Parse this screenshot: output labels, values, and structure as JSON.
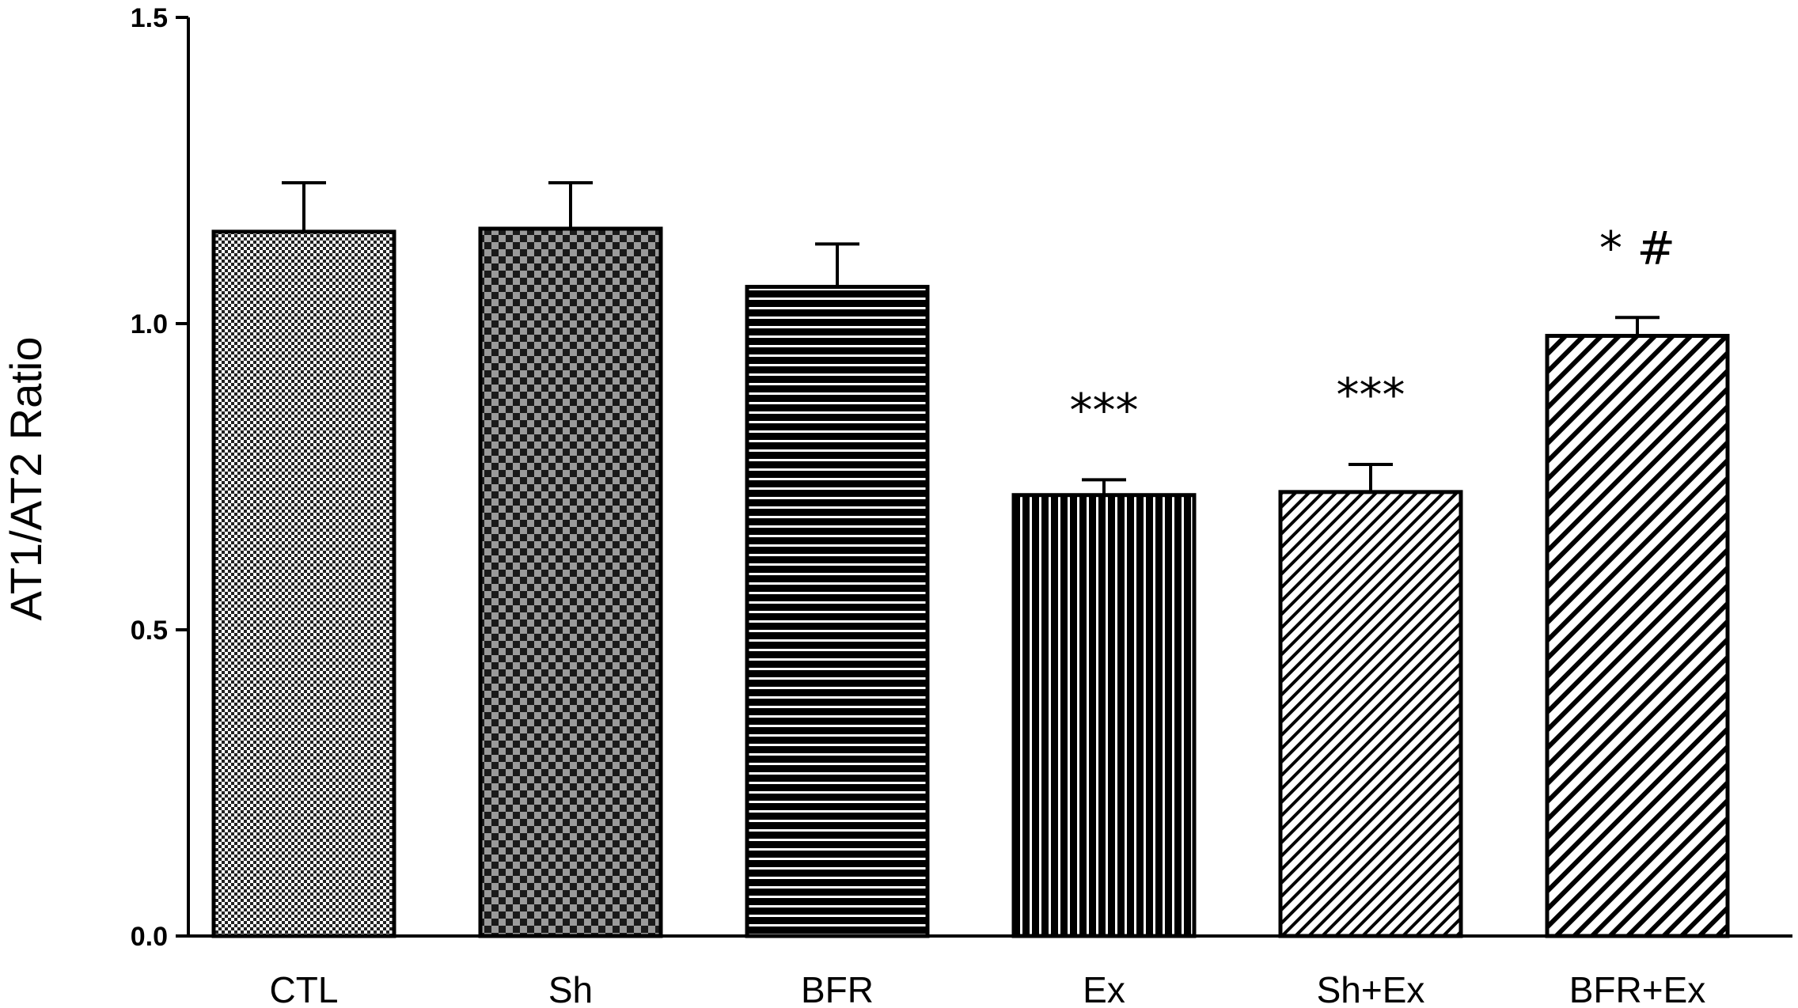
{
  "chart_data": {
    "type": "bar",
    "title": "",
    "xlabel": "",
    "ylabel": "AT1/AT2 Ratio",
    "ylim": [
      0.0,
      1.5
    ],
    "yticks": [
      "0.0",
      "0.5",
      "1.0",
      "1.5"
    ],
    "grid": false,
    "categories": [
      "CTL",
      "Sh",
      "BFR",
      "Ex",
      "Sh+Ex",
      "BFR+Ex"
    ],
    "values": [
      1.15,
      1.155,
      1.06,
      0.72,
      0.725,
      0.98
    ],
    "errors": [
      0.08,
      0.075,
      0.07,
      0.025,
      0.045,
      0.03
    ],
    "significance": [
      "",
      "",
      "",
      "***",
      "***",
      "* #"
    ],
    "patterns": [
      "fine-checker",
      "coarse-checker",
      "horizontal-stripes",
      "vertical-stripes",
      "diagonal-stripes-fine",
      "diagonal-stripes-wide"
    ]
  }
}
